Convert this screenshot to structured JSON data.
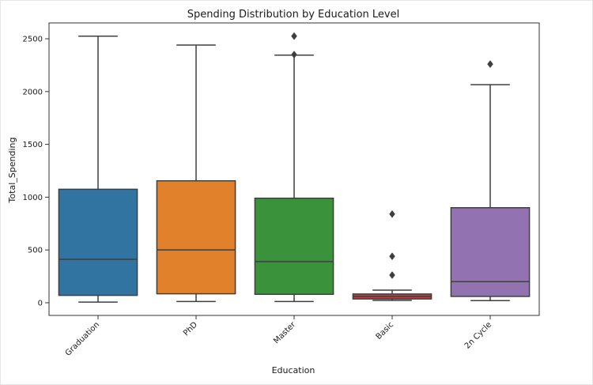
{
  "chart_data": {
    "type": "box",
    "title": "Spending Distribution by Education Level",
    "xlabel": "Education",
    "ylabel": "Total_Spending",
    "ylim": [
      -120,
      2650
    ],
    "yticks": [
      0,
      500,
      1000,
      1500,
      2000,
      2500
    ],
    "ytick_labels": [
      "0",
      "500",
      "1000",
      "1500",
      "2000",
      "2500"
    ],
    "grid": false,
    "categories": [
      "Graduation",
      "PhD",
      "Master",
      "Basic",
      "2n Cycle"
    ],
    "boxes": [
      {
        "category": "Graduation",
        "whisker_low": 6,
        "q1": 70,
        "median": 412,
        "q3": 1075,
        "whisker_high": 2525,
        "outliers": [],
        "color": "#3274a1"
      },
      {
        "category": "PhD",
        "whisker_low": 12,
        "q1": 85,
        "median": 500,
        "q3": 1155,
        "whisker_high": 2440,
        "outliers": [],
        "color": "#e1812c"
      },
      {
        "category": "Master",
        "whisker_low": 12,
        "q1": 80,
        "median": 390,
        "q3": 990,
        "whisker_high": 2345,
        "outliers": [
          2350,
          2525
        ],
        "color": "#3a923a"
      },
      {
        "category": "Basic",
        "whisker_low": 22,
        "q1": 36,
        "median": 60,
        "q3": 83,
        "whisker_high": 120,
        "outliers": [
          262,
          440,
          840
        ],
        "color": "#c03d3e"
      },
      {
        "category": "2n Cycle",
        "whisker_low": 20,
        "q1": 60,
        "median": 200,
        "q3": 900,
        "whisker_high": 2065,
        "outliers": [
          2260
        ],
        "color": "#9372b2"
      }
    ]
  }
}
